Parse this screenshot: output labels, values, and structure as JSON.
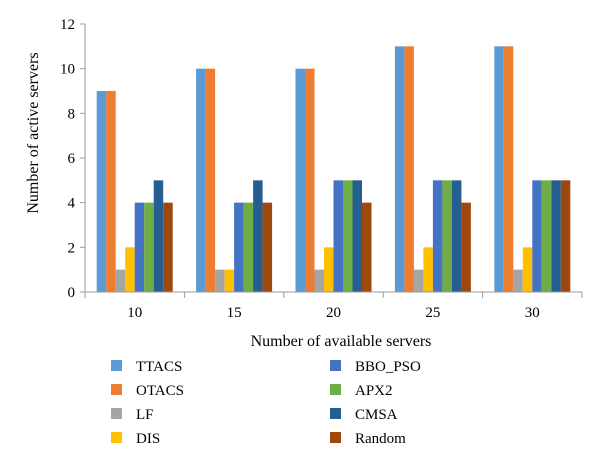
{
  "chart_data": {
    "type": "bar",
    "categories": [
      "10",
      "15",
      "20",
      "25",
      "30"
    ],
    "xlabel": "Number of available servers",
    "ylabel": "Number of active servers",
    "ylim": [
      0,
      12
    ],
    "yticks": [
      0,
      2,
      4,
      6,
      8,
      10,
      12
    ],
    "grid": false,
    "legend_position": "bottom",
    "series": [
      {
        "name": "TTACS",
        "color": "#5b9bd5",
        "values": [
          9,
          10,
          10,
          11,
          11
        ]
      },
      {
        "name": "OTACS",
        "color": "#ed7d31",
        "values": [
          9,
          10,
          10,
          11,
          11
        ]
      },
      {
        "name": "LF",
        "color": "#a5a5a5",
        "values": [
          1,
          1,
          1,
          1,
          1
        ]
      },
      {
        "name": "DIS",
        "color": "#ffc000",
        "values": [
          2,
          1,
          2,
          2,
          2
        ]
      },
      {
        "name": "BBO_PSO",
        "color": "#4472c4",
        "values": [
          4,
          4,
          5,
          5,
          5
        ]
      },
      {
        "name": "APX2",
        "color": "#70ad47",
        "values": [
          4,
          4,
          5,
          5,
          5
        ]
      },
      {
        "name": "CMSA",
        "color": "#255e91",
        "values": [
          5,
          5,
          5,
          5,
          5
        ]
      },
      {
        "name": "Random",
        "color": "#9e480e",
        "values": [
          4,
          4,
          4,
          4,
          5
        ]
      }
    ]
  }
}
